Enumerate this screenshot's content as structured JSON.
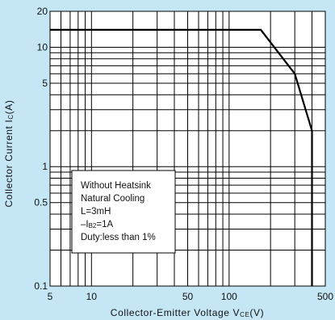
{
  "chart_data": {
    "type": "line",
    "xscale": "log",
    "yscale": "log",
    "xlim": [
      5,
      500
    ],
    "ylim": [
      0.1,
      20
    ],
    "grid": true,
    "xlabel": {
      "main": "Collector-Emitter Voltage V",
      "sub": "CE",
      "unit": "(V)"
    },
    "ylabel": {
      "main": "Collector Current I",
      "sub": "C",
      "unit": "(A)"
    },
    "x_ticks": [
      {
        "value": 5,
        "label": "5"
      },
      {
        "value": 10,
        "label": "10"
      },
      {
        "value": 50,
        "label": "50"
      },
      {
        "value": 100,
        "label": "100"
      },
      {
        "value": 500,
        "label": "500"
      }
    ],
    "y_ticks": [
      {
        "value": 0.1,
        "label": "0.1"
      },
      {
        "value": 0.5,
        "label": "0.5"
      },
      {
        "value": 1,
        "label": "1"
      },
      {
        "value": 5,
        "label": "5"
      },
      {
        "value": 10,
        "label": "10"
      },
      {
        "value": 20,
        "label": "20"
      }
    ],
    "series": [
      {
        "x": [
          5,
          170,
          300,
          400,
          400
        ],
        "y": [
          14,
          14,
          6,
          2,
          0.1
        ]
      }
    ],
    "annotation": [
      {
        "text": "Without Heatsink"
      },
      {
        "text": "Natural Cooling"
      },
      {
        "text": "L=3mH"
      },
      {
        "text": "–I",
        "sub": "B2",
        "tail": "=1A"
      },
      {
        "text": "Duty:less than 1%"
      }
    ],
    "colors": {
      "background": "#c5e6f5",
      "plot": "#ffffff",
      "line": "#000000"
    }
  }
}
